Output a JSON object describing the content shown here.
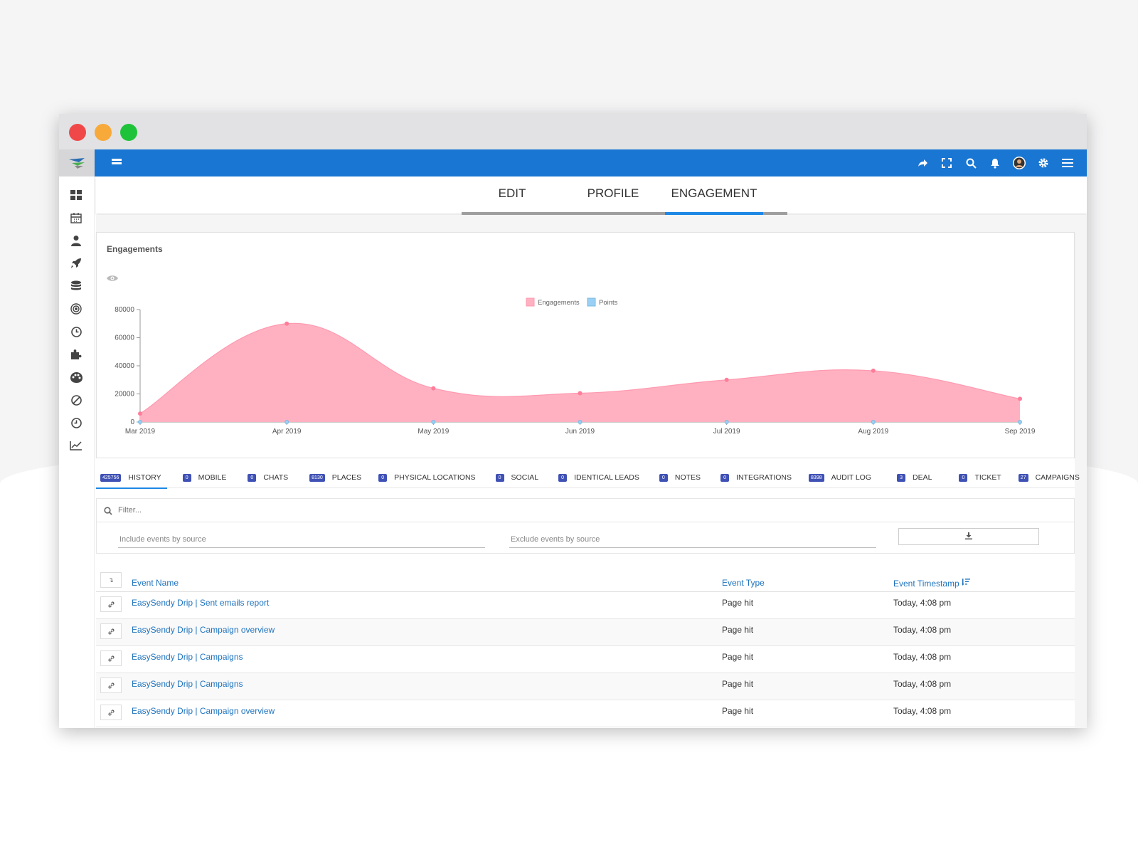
{
  "colors": {
    "topbar": "#1976d2",
    "accent": "#1e88e5",
    "badge": "#3f51b5",
    "link": "#1e73be",
    "engagements_fill": "#ffb1c1",
    "points_fill": "#9ad0f5"
  },
  "topbar": {
    "icons": [
      "share-icon",
      "fullscreen-icon",
      "search-icon",
      "bell-icon",
      "avatar",
      "gear-icon",
      "menu-icon"
    ]
  },
  "sidebar": {
    "icons": [
      "dashboard-icon",
      "calendar-icon",
      "user-icon",
      "rocket-icon",
      "database-icon",
      "target-icon",
      "clock-icon",
      "puzzle-icon",
      "palette-icon",
      "ban-icon",
      "history-icon",
      "chart-line-icon"
    ]
  },
  "tabs": [
    {
      "label": "EDIT"
    },
    {
      "label": "PROFILE"
    },
    {
      "label": "ENGAGEMENT"
    }
  ],
  "card": {
    "title": "Engagements"
  },
  "chart_data": {
    "type": "area",
    "title": "",
    "categories": [
      "Mar 2019",
      "Apr 2019",
      "May 2019",
      "Jun 2019",
      "Jul 2019",
      "Aug 2019",
      "Sep 2019"
    ],
    "series": [
      {
        "name": "Engagements",
        "values": [
          6000,
          70000,
          24000,
          20500,
          30000,
          36500,
          16500
        ]
      },
      {
        "name": "Points",
        "values": [
          0,
          0,
          0,
          0,
          0,
          0,
          0
        ]
      }
    ],
    "y_ticks": [
      "80000",
      "60000",
      "40000",
      "20000",
      "0"
    ],
    "ylim": [
      0,
      80000
    ],
    "legend": "top-center"
  },
  "subtabs": [
    {
      "badge": "425756",
      "label": "HISTORY"
    },
    {
      "badge": "0",
      "label": "MOBILE"
    },
    {
      "badge": "0",
      "label": "CHATS"
    },
    {
      "badge": "8130",
      "label": "PLACES"
    },
    {
      "badge": "0",
      "label": "PHYSICAL LOCATIONS"
    },
    {
      "badge": "0",
      "label": "SOCIAL"
    },
    {
      "badge": "0",
      "label": "IDENTICAL LEADS"
    },
    {
      "badge": "0",
      "label": "NOTES"
    },
    {
      "badge": "0",
      "label": "INTEGRATIONS"
    },
    {
      "badge": "8398",
      "label": "AUDIT LOG"
    },
    {
      "badge": "3",
      "label": "DEAL"
    },
    {
      "badge": "0",
      "label": "TICKET"
    },
    {
      "badge": "27",
      "label": "CAMPAIGNS"
    }
  ],
  "filter": {
    "placeholder": "Filter...",
    "include_placeholder": "Include events by source",
    "exclude_placeholder": "Exclude events by source"
  },
  "table": {
    "headers": {
      "name": "Event Name",
      "type": "Event Type",
      "timestamp": "Event Timestamp"
    },
    "rows": [
      {
        "name": "EasySendy Drip | Sent emails report",
        "type": "Page hit",
        "timestamp": "Today, 4:08 pm"
      },
      {
        "name": "EasySendy Drip | Campaign overview",
        "type": "Page hit",
        "timestamp": "Today, 4:08 pm"
      },
      {
        "name": "EasySendy Drip | Campaigns",
        "type": "Page hit",
        "timestamp": "Today, 4:08 pm"
      },
      {
        "name": "EasySendy Drip | Campaigns",
        "type": "Page hit",
        "timestamp": "Today, 4:08 pm"
      },
      {
        "name": "EasySendy Drip | Campaign overview",
        "type": "Page hit",
        "timestamp": "Today, 4:08 pm"
      }
    ]
  }
}
